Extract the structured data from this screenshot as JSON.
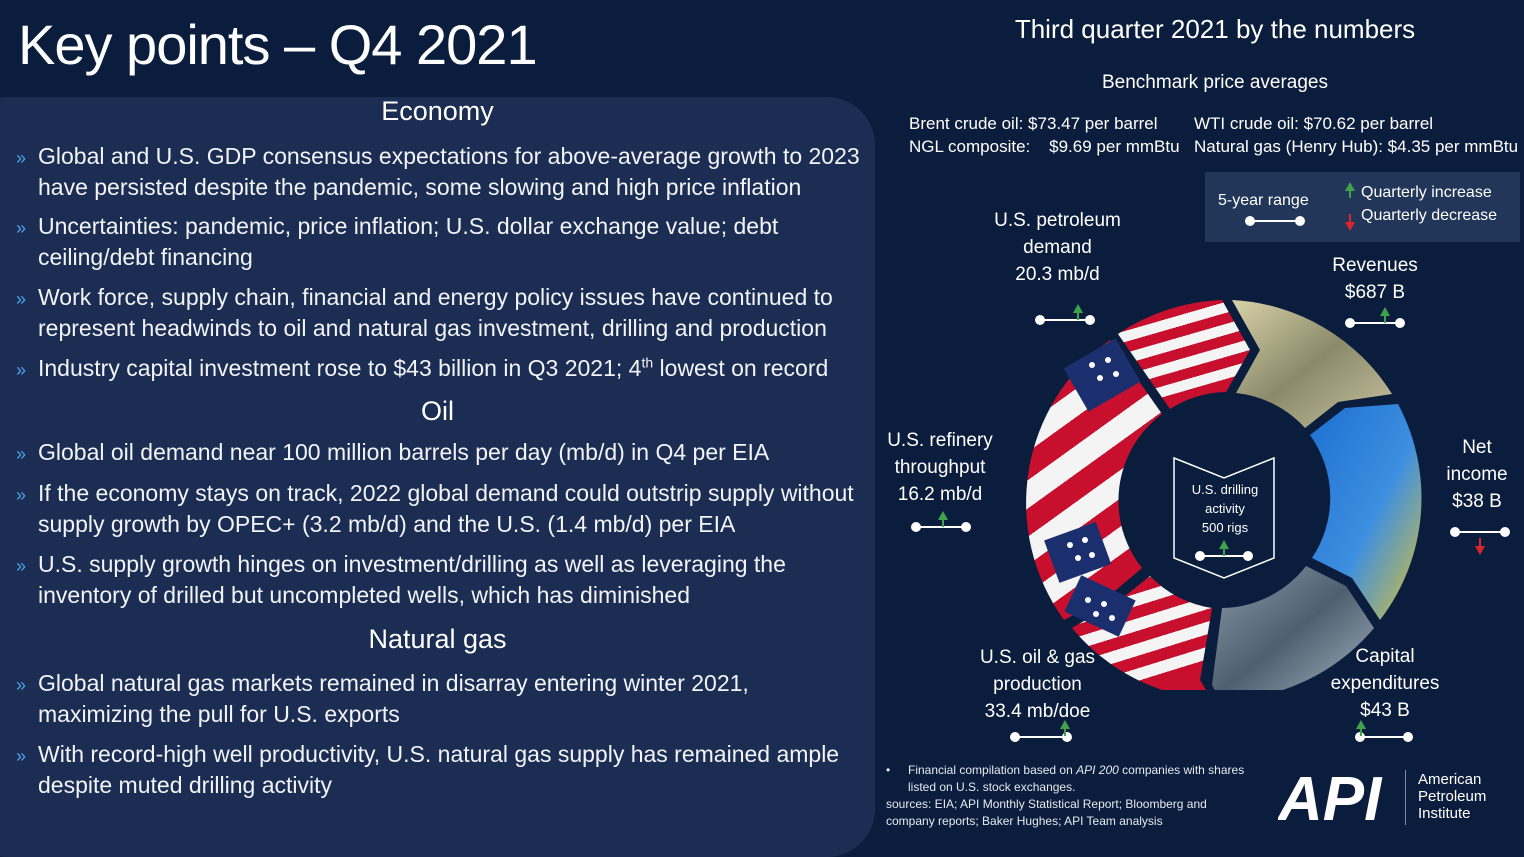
{
  "page_title": "Key points – Q4 2021",
  "left": {
    "economy": {
      "heading": "Economy",
      "bullets": [
        "Global and U.S. GDP consensus expectations for above-average growth to 2023 have persisted despite the pandemic, some slowing and high price inflation",
        "Uncertainties: pandemic, price inflation; U.S. dollar exchange value; debt ceiling/debt financing",
        "Work force, supply chain, financial and energy policy issues have continued to represent headwinds to oil and natural gas investment, drilling and production",
        "Industry capital investment rose to $43 billion in Q3 2021; 4",
        "th",
        " lowest on record"
      ]
    },
    "oil": {
      "heading": "Oil",
      "bullets": [
        "Global oil demand near 100 million barrels per day (mb/d) in Q4 per EIA",
        "If the economy stays on track, 2022 global demand could outstrip supply without supply growth by OPEC+ (3.2 mb/d) and the U.S. (1.4 mb/d) per EIA",
        "U.S. supply growth hinges on investment/drilling as well as leveraging the inventory of drilled but uncompleted wells, which has diminished"
      ]
    },
    "gas": {
      "heading": "Natural gas",
      "bullets": [
        "Global natural gas markets remained in disarray entering winter 2021, maximizing the pull for U.S. exports",
        "With record-high well productivity, U.S. natural gas supply has remained ample despite muted drilling activity"
      ]
    }
  },
  "right": {
    "title": "Third quarter 2021 by the numbers",
    "bench_heading": "Benchmark price averages",
    "prices": {
      "brent": "Brent crude oil:  $73.47 per barrel",
      "wti": "WTI crude oil:  $70.62 per barrel",
      "ngl": "NGL composite:    $9.69 per mmBtu",
      "henry": "Natural gas (Henry Hub):  $4.35 per mmBtu"
    },
    "legend": {
      "range": "5-year range",
      "increase": "Quarterly increase",
      "decrease": "Quarterly decrease"
    },
    "metrics": {
      "demand": [
        "U.S. petroleum",
        "demand",
        "20.3 mb/d"
      ],
      "revenues": [
        "Revenues",
        "$687 B"
      ],
      "net_income": [
        "Net",
        "income",
        "$38 B"
      ],
      "capex": [
        "Capital",
        "expenditures",
        "$43 B"
      ],
      "production": [
        "U.S. oil & gas",
        "production",
        "33.4 mb/doe"
      ],
      "refinery": [
        "U.S. refinery",
        "throughput",
        "16.2 mb/d"
      ],
      "drilling": [
        "U.S. drilling",
        "activity",
        "500 rigs"
      ]
    },
    "footnote": {
      "bullet_pre": "Financial compilation based on ",
      "bullet_em": "API 200",
      "bullet_post": " companies with shares listed on U.S. stock exchanges.",
      "sources": "sources: EIA; API Monthly Statistical Report; Bloomberg and company reports; Baker Hughes; API Team analysis"
    },
    "logo": {
      "mark": "API",
      "line1": "American",
      "line2": "Petroleum",
      "line3": "Institute"
    }
  }
}
